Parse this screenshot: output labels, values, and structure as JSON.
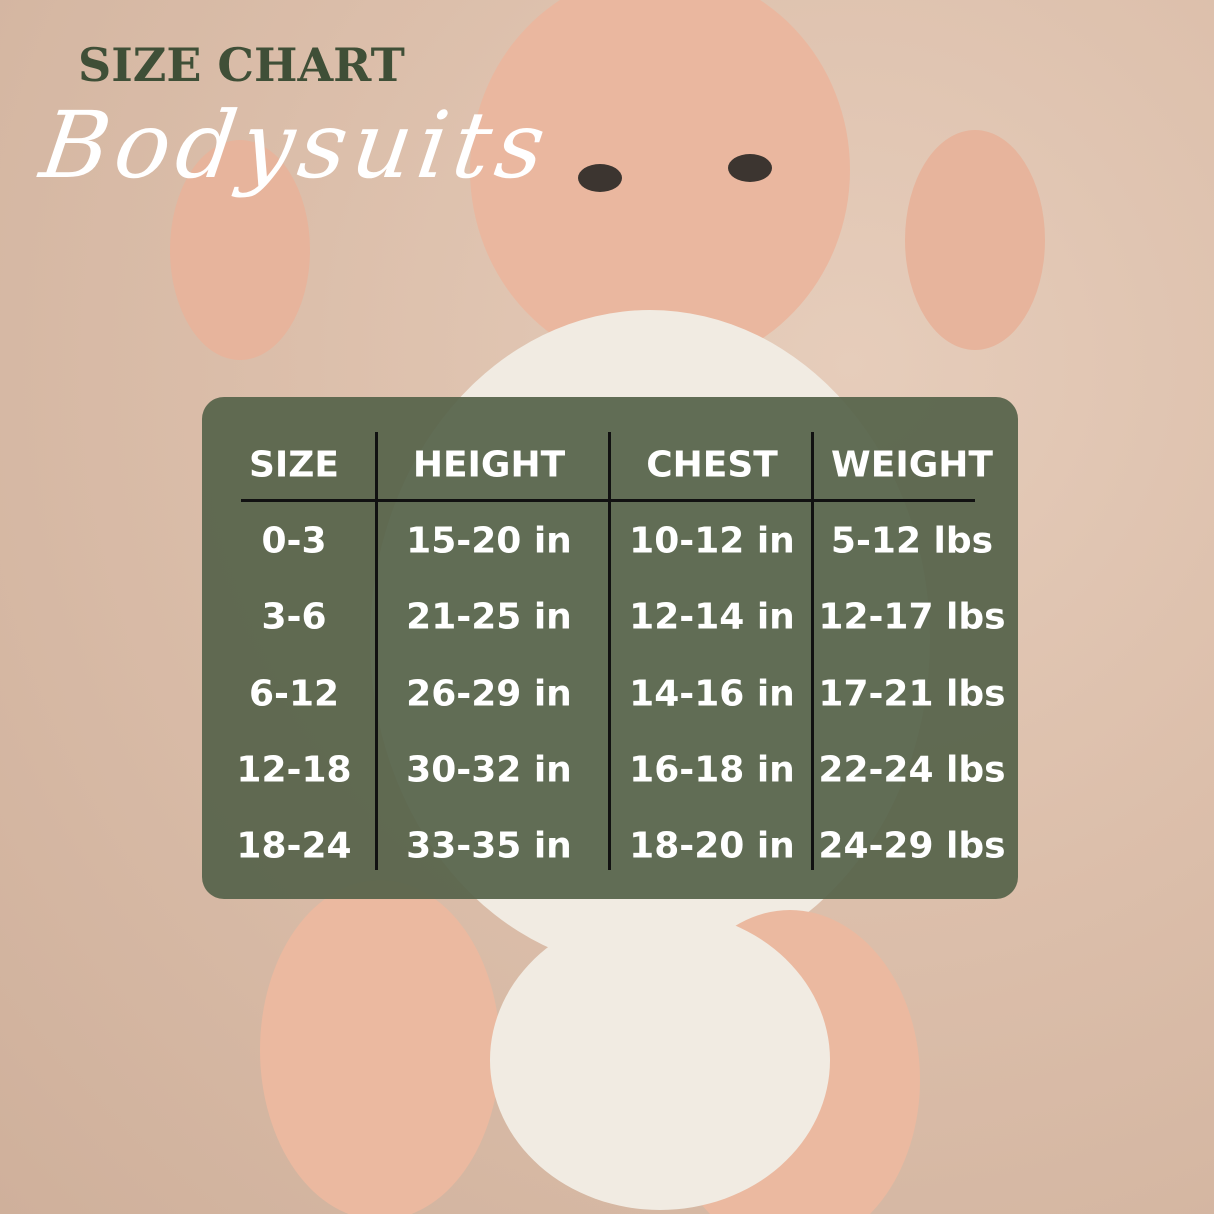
{
  "header": {
    "title": "SIZE CHART",
    "subtitle": "Bodysuits"
  },
  "table": {
    "columns": [
      "SIZE",
      "HEIGHT",
      "CHEST",
      "WEIGHT"
    ],
    "rows": [
      [
        "0-3",
        "15-20 in",
        "10-12 in",
        "5-12 lbs"
      ],
      [
        "3-6",
        "21-25 in",
        "12-14 in",
        "12-17 lbs"
      ],
      [
        "6-12",
        "26-29 in",
        "14-16 in",
        "17-21 lbs"
      ],
      [
        "12-18",
        "30-32 in",
        "16-18 in",
        "22-24 lbs"
      ],
      [
        "18-24",
        "33-35 in",
        "18-20 in",
        "24-29 lbs"
      ]
    ]
  },
  "colors": {
    "title": "#3f4f37",
    "panel": "#56634a",
    "background": "#dcbfab"
  }
}
